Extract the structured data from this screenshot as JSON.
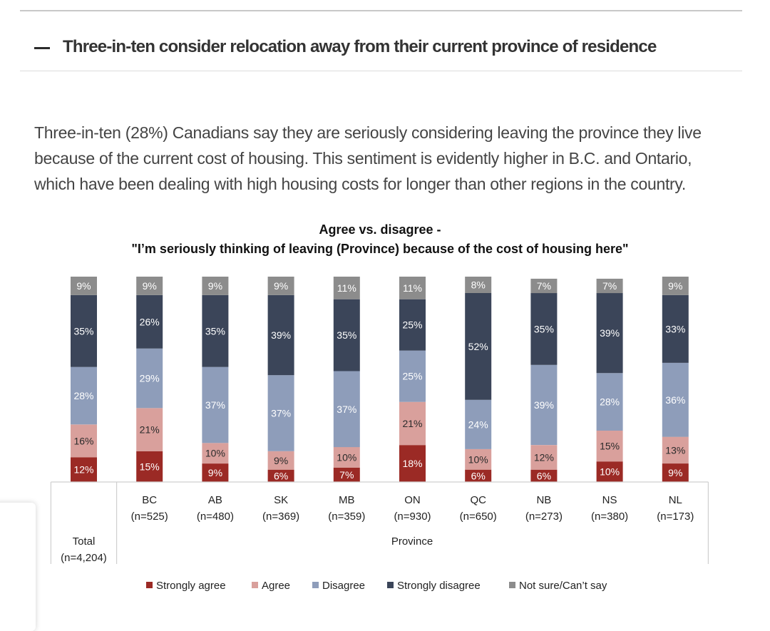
{
  "section": {
    "title": "Three-in-ten consider relocation away from their current province of residence",
    "collapse_icon": "minus-icon"
  },
  "body_text": "Three-in-ten (28%) Canadians say they are seriously considering leaving the province they live because of the current cost of housing. This sentiment is evidently higher in B.C. and Ontario, which have been dealing with high housing costs for longer than other regions in the country.",
  "chart_data": {
    "type": "bar",
    "stacked": true,
    "title": "Agree vs. disagree -",
    "subtitle": "\"I’m seriously thinking of leaving (Province) because of the cost of housing here\"",
    "xlabel": "Province",
    "categories": [
      "Total",
      "BC",
      "AB",
      "SK",
      "MB",
      "ON",
      "QC",
      "NB",
      "NS",
      "NL"
    ],
    "category_sublabels": [
      "(n=4,204)",
      "(n=525)",
      "(n=480)",
      "(n=369)",
      "(n=359)",
      "(n=930)",
      "(n=650)",
      "(n=273)",
      "(n=380)",
      "(n=173)"
    ],
    "series": [
      {
        "name": "Strongly agree",
        "color": "#9b2a25",
        "values": [
          12,
          15,
          9,
          6,
          7,
          18,
          6,
          6,
          10,
          9
        ]
      },
      {
        "name": "Agree",
        "color": "#d9a09c",
        "values": [
          16,
          21,
          10,
          9,
          10,
          21,
          10,
          12,
          15,
          13
        ]
      },
      {
        "name": "Disagree",
        "color": "#8e9dba",
        "values": [
          28,
          29,
          37,
          37,
          37,
          25,
          24,
          39,
          28,
          36
        ]
      },
      {
        "name": "Strongly disagree",
        "color": "#3b4559",
        "values": [
          35,
          26,
          35,
          39,
          35,
          25,
          52,
          35,
          39,
          33
        ]
      },
      {
        "name": "Not sure/Can’t say",
        "color": "#8c8c8c",
        "values": [
          9,
          9,
          9,
          9,
          11,
          11,
          8,
          7,
          7,
          9
        ]
      }
    ],
    "ylim": [
      0,
      100
    ],
    "legend_position": "bottom"
  }
}
